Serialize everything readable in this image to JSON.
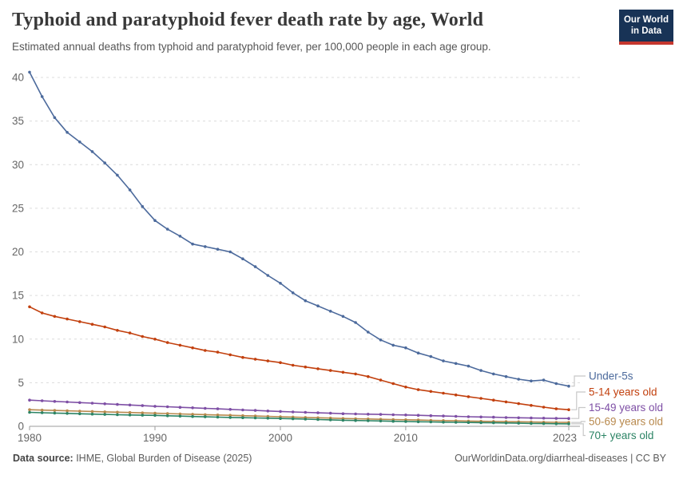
{
  "header": {
    "title": "Typhoid and paratyphoid fever death rate by age, World",
    "subtitle": "Estimated annual deaths from typhoid and paratyphoid fever, per 100,000 people in each age group.",
    "logo": {
      "line1": "Our World",
      "line2": "in Data",
      "bg_color": "#183356",
      "bar_color": "#c5372e"
    }
  },
  "footer": {
    "source_label": "Data source:",
    "source_value": " IHME, Global Burden of Disease (2025)",
    "link": "OurWorldinData.org/diarrheal-diseases | CC BY"
  },
  "chart_data": {
    "type": "line",
    "title": "Typhoid and paratyphoid fever death rate by age, World",
    "xlabel": "",
    "ylabel": "",
    "xlim": [
      1980,
      2023
    ],
    "ylim": [
      0,
      41
    ],
    "grid": "horizontal-dashed",
    "legend_position": "right-of-line-ends",
    "markers": true,
    "xticks": [
      1980,
      1990,
      2000,
      2010,
      2023
    ],
    "yticks": [
      0,
      5,
      10,
      15,
      20,
      25,
      30,
      35,
      40
    ],
    "x": [
      1980,
      1981,
      1982,
      1983,
      1984,
      1985,
      1986,
      1987,
      1988,
      1989,
      1990,
      1991,
      1992,
      1993,
      1994,
      1995,
      1996,
      1997,
      1998,
      1999,
      2000,
      2001,
      2002,
      2003,
      2004,
      2005,
      2006,
      2007,
      2008,
      2009,
      2010,
      2011,
      2012,
      2013,
      2014,
      2015,
      2016,
      2017,
      2018,
      2019,
      2020,
      2021,
      2022,
      2023
    ],
    "series": [
      {
        "id": "under-5s",
        "name": "Under-5s",
        "color": "#4C6A9C",
        "values": [
          40.6,
          37.8,
          35.4,
          33.7,
          32.6,
          31.5,
          30.2,
          28.8,
          27.1,
          25.2,
          23.6,
          22.6,
          21.8,
          20.9,
          20.6,
          20.3,
          20.0,
          19.2,
          18.3,
          17.3,
          16.4,
          15.3,
          14.4,
          13.8,
          13.2,
          12.6,
          11.9,
          10.8,
          9.9,
          9.3,
          9.0,
          8.4,
          8.0,
          7.5,
          7.2,
          6.9,
          6.4,
          6.0,
          5.7,
          5.4,
          5.2,
          5.3,
          4.9,
          4.6
        ]
      },
      {
        "id": "5-14",
        "name": "5-14 years old",
        "color": "#C2400E",
        "values": [
          13.7,
          13.0,
          12.6,
          12.3,
          12.0,
          11.7,
          11.4,
          11.0,
          10.7,
          10.3,
          10.0,
          9.6,
          9.3,
          9.0,
          8.7,
          8.5,
          8.2,
          7.9,
          7.7,
          7.5,
          7.3,
          7.0,
          6.8,
          6.6,
          6.4,
          6.2,
          6.0,
          5.7,
          5.3,
          4.9,
          4.5,
          4.2,
          4.0,
          3.8,
          3.6,
          3.4,
          3.2,
          3.0,
          2.8,
          2.6,
          2.4,
          2.2,
          2.0,
          1.9
        ]
      },
      {
        "id": "15-49",
        "name": "15-49 years old",
        "color": "#7E4FA5",
        "values": [
          3.0,
          2.93,
          2.86,
          2.79,
          2.72,
          2.65,
          2.58,
          2.51,
          2.44,
          2.37,
          2.3,
          2.24,
          2.18,
          2.12,
          2.06,
          2.0,
          1.94,
          1.88,
          1.82,
          1.76,
          1.7,
          1.65,
          1.6,
          1.55,
          1.5,
          1.45,
          1.42,
          1.39,
          1.36,
          1.33,
          1.3,
          1.26,
          1.22,
          1.18,
          1.14,
          1.1,
          1.07,
          1.04,
          1.01,
          0.98,
          0.95,
          0.93,
          0.91,
          0.9
        ]
      },
      {
        "id": "50-69",
        "name": "50-69 years old",
        "color": "#B8894D",
        "values": [
          1.9,
          1.86,
          1.82,
          1.78,
          1.74,
          1.7,
          1.66,
          1.62,
          1.58,
          1.54,
          1.5,
          1.46,
          1.42,
          1.38,
          1.34,
          1.3,
          1.26,
          1.22,
          1.18,
          1.14,
          1.1,
          1.06,
          1.02,
          0.98,
          0.94,
          0.9,
          0.87,
          0.84,
          0.81,
          0.78,
          0.75,
          0.72,
          0.69,
          0.66,
          0.63,
          0.6,
          0.58,
          0.56,
          0.54,
          0.52,
          0.5,
          0.48,
          0.46,
          0.45
        ]
      },
      {
        "id": "70-plus",
        "name": "70+ years old",
        "color": "#2C8465",
        "values": [
          1.6,
          1.56,
          1.52,
          1.48,
          1.44,
          1.4,
          1.36,
          1.33,
          1.3,
          1.27,
          1.25,
          1.21,
          1.17,
          1.13,
          1.09,
          1.05,
          1.02,
          0.99,
          0.96,
          0.93,
          0.9,
          0.86,
          0.82,
          0.78,
          0.74,
          0.7,
          0.67,
          0.64,
          0.61,
          0.58,
          0.55,
          0.52,
          0.5,
          0.48,
          0.46,
          0.44,
          0.42,
          0.4,
          0.38,
          0.36,
          0.33,
          0.31,
          0.29,
          0.28
        ]
      }
    ]
  }
}
